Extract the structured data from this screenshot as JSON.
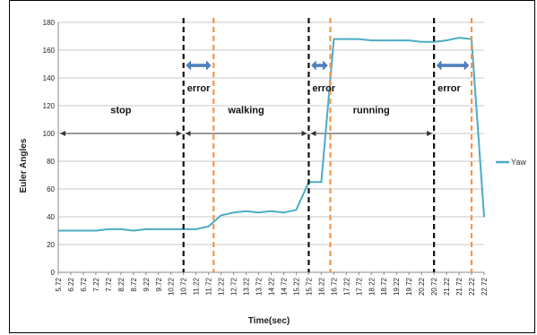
{
  "chart_data": {
    "type": "line",
    "xlabel": "Time(sec)",
    "ylabel": "Euler Angles",
    "ylim": [
      0,
      180
    ],
    "yticks": [
      0,
      20,
      40,
      60,
      80,
      100,
      120,
      140,
      160,
      180
    ],
    "grid": true,
    "legend_position": "right",
    "x": [
      "5.72",
      "6.22",
      "6.72",
      "7.22",
      "7.72",
      "8.22",
      "8.72",
      "9.22",
      "9.72",
      "10.22",
      "10.72",
      "11.22",
      "11.72",
      "12.22",
      "12.72",
      "13.22",
      "13.72",
      "14.22",
      "14.72",
      "15.22",
      "15.72",
      "16.22",
      "16.72",
      "17.22",
      "17.72",
      "18.22",
      "18.72",
      "19.22",
      "19.72",
      "20.22",
      "20.72",
      "21.22",
      "21.72",
      "22.22",
      "22.72"
    ],
    "series": [
      {
        "name": "Yaw",
        "color": "#4bacc6",
        "values": [
          30,
          30,
          30,
          30,
          31,
          31,
          30,
          31,
          31,
          31,
          31,
          31,
          33,
          41,
          43,
          44,
          43,
          44,
          43,
          45,
          65,
          65,
          168,
          168,
          168,
          167,
          167,
          167,
          167,
          166,
          166,
          167,
          169,
          168,
          40
        ]
      }
    ],
    "black_dashed_lines_at": [
      10.72,
      15.72,
      20.72
    ],
    "orange_dashed_lines_at": [
      11.92,
      16.58,
      22.22
    ],
    "phases": [
      {
        "label": "stop",
        "from": 5.72,
        "to": 10.72,
        "label_y": 117
      },
      {
        "label": "walking",
        "from": 10.72,
        "to": 15.72,
        "label_y": 117
      },
      {
        "label": "running",
        "from": 15.72,
        "to": 20.72,
        "label_y": 117
      }
    ],
    "phase_arrow_y": 100,
    "errors": [
      {
        "label": "error",
        "from": 10.72,
        "to": 11.92
      },
      {
        "label": "error",
        "from": 15.72,
        "to": 16.58
      },
      {
        "label": "error",
        "from": 20.72,
        "to": 22.22
      }
    ],
    "error_arrow_y": 149,
    "error_label_y": 133
  }
}
